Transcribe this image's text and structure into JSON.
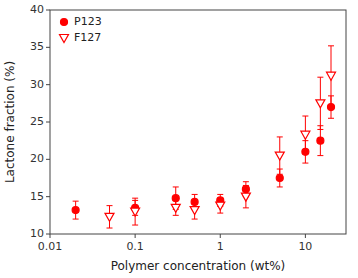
{
  "chart_data": {
    "type": "scatter",
    "xlabel": "Polymer concentration (wt%)",
    "ylabel": "Lactone fraction (%)",
    "log": "x",
    "xlim": [
      0.01,
      30
    ],
    "ylim": [
      10,
      40
    ],
    "xticks": [
      0.01,
      0.1,
      1,
      10
    ],
    "yticks": [
      10,
      15,
      20,
      25,
      30,
      35,
      40
    ],
    "legend": "upper left",
    "series": [
      {
        "name": "P123",
        "color": "#FF0000",
        "marker": "circle",
        "x": [
          0.02,
          0.1,
          0.3,
          0.5,
          1.0,
          2.0,
          5.0,
          10.0,
          15.0,
          20.0
        ],
        "values": [
          13.2,
          13.5,
          14.8,
          14.3,
          14.5,
          16.0,
          17.5,
          21.0,
          22.5,
          27.0
        ],
        "errors": [
          1.2,
          1.0,
          1.5,
          1.0,
          0.8,
          1.0,
          1.2,
          1.5,
          2.0,
          1.5
        ]
      },
      {
        "name": "F127",
        "color": "#FF0000",
        "marker": "triangle-down-open",
        "x": [
          0.05,
          0.1,
          0.3,
          0.5,
          1.0,
          2.0,
          5.0,
          10.0,
          15.0,
          20.0
        ],
        "values": [
          12.3,
          13.0,
          13.5,
          13.2,
          13.8,
          15.0,
          20.5,
          23.3,
          27.5,
          31.2
        ],
        "errors": [
          1.5,
          1.8,
          1.0,
          1.2,
          1.0,
          1.5,
          2.5,
          2.5,
          3.5,
          4.0
        ]
      }
    ]
  }
}
